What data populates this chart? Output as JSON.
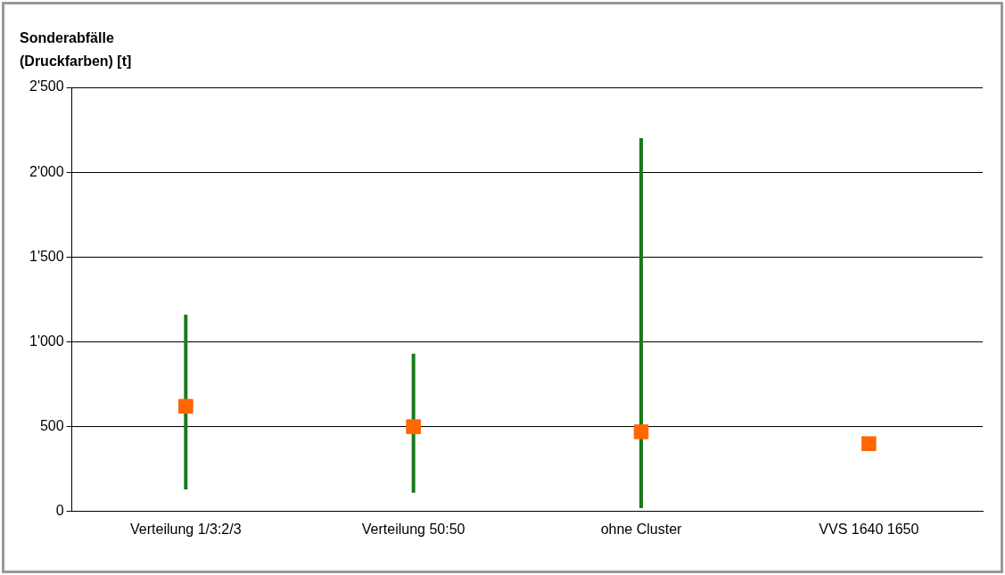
{
  "chart_data": {
    "type": "scatter",
    "ylabel": "Sonderabfälle (Druckfarben) [t]",
    "categories": [
      "Verteilung 1/3:2/3",
      "Verteilung 50:50",
      "ohne Cluster",
      "VVS 1640 1650"
    ],
    "series": [
      {
        "color": "#ff6600",
        "values": [
          620,
          500,
          470,
          400
        ],
        "errors": [
          [
            130,
            1160
          ],
          [
            110,
            930
          ],
          [
            20,
            2200
          ],
          null
        ]
      }
    ],
    "ylim": [
      0,
      2500
    ],
    "yticks": [
      {
        "value": 0,
        "label": "0"
      },
      {
        "value": 500,
        "label": "500"
      },
      {
        "value": 1000,
        "label": "1'000"
      },
      {
        "value": 1500,
        "label": "1'500"
      },
      {
        "value": 2000,
        "label": "2'000"
      },
      {
        "value": 2500,
        "label": "2'500"
      }
    ],
    "grid": "y",
    "marker": "square",
    "legend": false
  }
}
